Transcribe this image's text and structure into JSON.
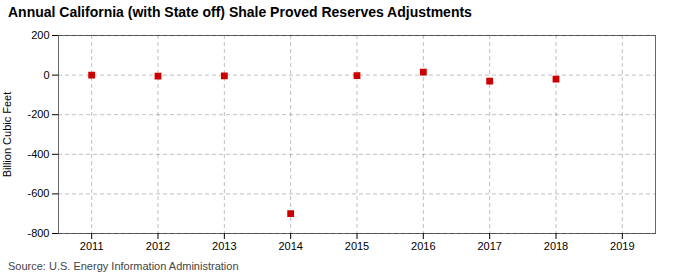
{
  "chart_data": {
    "type": "scatter",
    "title": "Annual California (with State off) Shale Proved Reserves Adjustments",
    "ylabel": "Billion Cubic Feet",
    "source": "Source: U.S. Energy Information Administration",
    "x": [
      2011,
      2012,
      2013,
      2014,
      2015,
      2016,
      2017,
      2018
    ],
    "values": [
      0,
      -5,
      -4,
      -700,
      -3,
      15,
      -30,
      -20
    ],
    "color": "#cc0000",
    "marker": "square",
    "xlim": [
      2010.5,
      2019.5
    ],
    "xticks": [
      2011,
      2012,
      2013,
      2014,
      2015,
      2016,
      2017,
      2018,
      2019
    ],
    "ylim": [
      -800,
      200
    ],
    "yticks": [
      -800,
      -600,
      -400,
      -200,
      0,
      200
    ],
    "grid": true
  }
}
